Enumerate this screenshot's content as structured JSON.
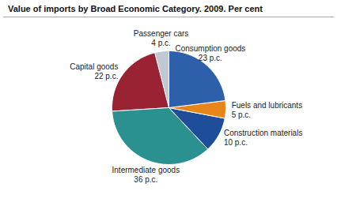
{
  "chart_data": {
    "type": "pie",
    "title": "Value of imports by Broad Economic Category. 2009. Per cent",
    "categories": [
      "Passenger cars",
      "Capital goods",
      "Intermediate goods",
      "Construction materials",
      "Fuels and lubricants",
      "Consumption goods"
    ],
    "values": [
      4,
      22,
      36,
      10,
      5,
      23
    ],
    "value_labels": [
      "4 p.c.",
      "22 p.c.",
      "36 p.c.",
      "10 p.c.",
      "5 p.c.",
      "23 p.c."
    ],
    "colors": [
      "#c0c8d0",
      "#992233",
      "#2a9090",
      "#1e4d99",
      "#e8851a",
      "#2e5faa"
    ],
    "data_labels": true
  }
}
